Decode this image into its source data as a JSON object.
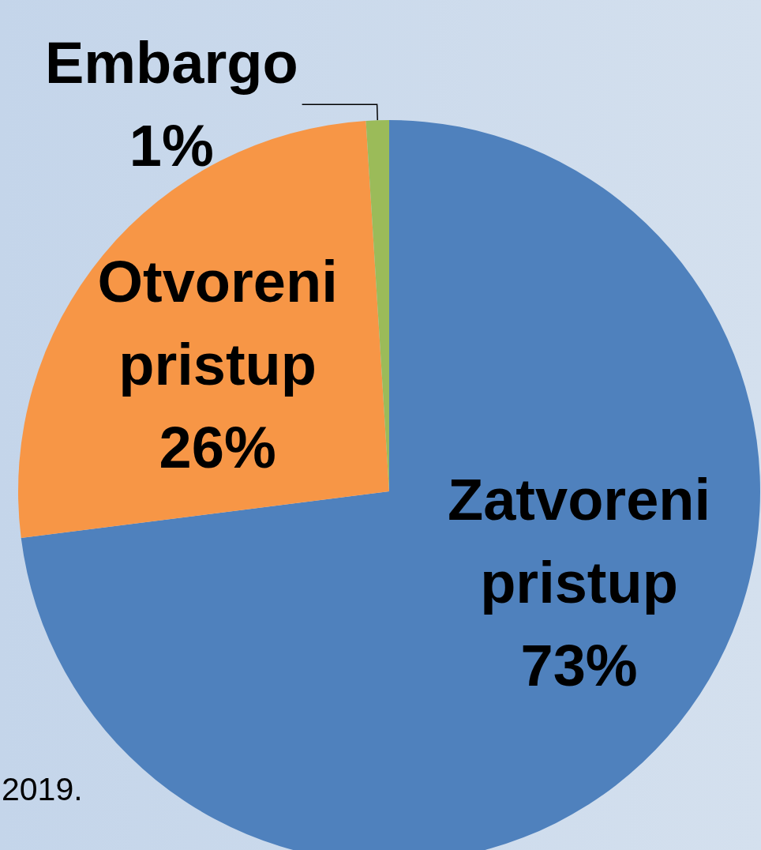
{
  "chart_data": {
    "type": "pie",
    "categories": [
      "Zatvoreni pristup",
      "Otvoreni pristup",
      "Embargo"
    ],
    "values": [
      73,
      26,
      1
    ],
    "colors": [
      "#4f81bd",
      "#f79646",
      "#9bbb59"
    ],
    "value_labels": [
      "73%",
      "26%",
      "1%"
    ],
    "annotations": [
      "2019."
    ]
  }
}
